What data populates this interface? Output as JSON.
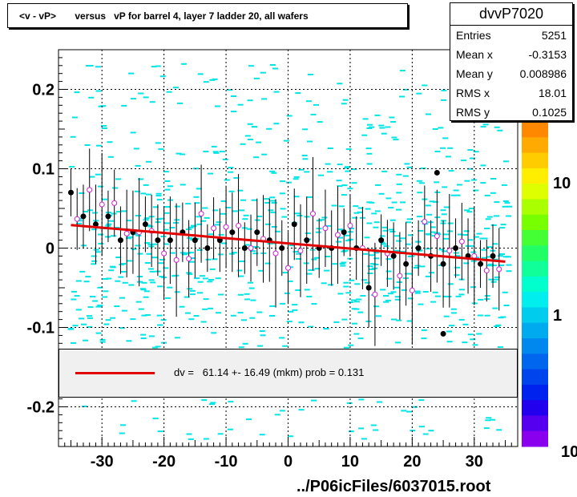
{
  "title": "<v - vP>       versus   vP for barrel 4, layer 7 ladder 20, all wafers",
  "stats": {
    "name": "dvvP7020",
    "rows": [
      {
        "label": "Entries",
        "value": "5251"
      },
      {
        "label": "Mean x",
        "value": "-0.3153"
      },
      {
        "label": "Mean y",
        "value": "0.008986"
      },
      {
        "label": "RMS x",
        "value": "18.01"
      },
      {
        "label": "RMS y",
        "value": "0.1025"
      }
    ]
  },
  "fit_label": "dv =   61.14 +- 16.49 (mkm) prob = 0.131",
  "footer": "../P06icFiles/6037015.root",
  "colors": {
    "fit": "#e00000",
    "points": "#000000",
    "open_markers": "#cc22cc",
    "hist_cells": "#00e5e5",
    "grid": "#000000"
  },
  "chart_data": {
    "type": "scatter",
    "title": "<v - vP>       versus   vP for barrel 4, layer 7 ladder 20, all wafers",
    "xlabel": "",
    "ylabel": "",
    "xlim": [
      -37,
      37
    ],
    "ylim": [
      -0.25,
      0.25
    ],
    "xticks": [
      -30,
      -20,
      -10,
      0,
      10,
      20,
      30
    ],
    "yticks": [
      -0.2,
      -0.1,
      0,
      0.1,
      0.2
    ],
    "xtick_labels": [
      "-30",
      "-20",
      "-10",
      "0",
      "10",
      "20",
      "30"
    ],
    "ytick_labels": [
      "-0.2",
      "-0.1",
      "0",
      "0.1",
      "0.2"
    ],
    "grid": true,
    "fit": {
      "x": [
        -35,
        35
      ],
      "y": [
        0.029,
        -0.017
      ]
    },
    "color_scale": {
      "labels": [
        "10",
        "1",
        "10"
      ],
      "note": "log scale"
    },
    "profile_means": {
      "x": [
        -35,
        -33,
        -31,
        -29,
        -27,
        -25,
        -23,
        -21,
        -19,
        -17,
        -15,
        -13,
        -11,
        -9,
        -7,
        -5,
        -3,
        -1,
        1,
        3,
        5,
        7,
        9,
        11,
        13,
        15,
        17,
        19,
        21,
        23,
        25,
        27,
        29,
        31,
        33
      ],
      "y": [
        0.07,
        0.04,
        0.03,
        0.04,
        0.01,
        0.02,
        0.03,
        0.01,
        0.01,
        0.02,
        0.01,
        0.0,
        0.01,
        0.02,
        0.0,
        0.02,
        0.01,
        0.0,
        0.03,
        0.01,
        0.0,
        0.0,
        0.02,
        0.0,
        -0.05,
        0.01,
        -0.01,
        -0.02,
        0.0,
        -0.01,
        -0.02,
        0.0,
        -0.01,
        -0.02,
        -0.01
      ]
    },
    "outliers": {
      "x": [
        24,
        25
      ],
      "y": [
        0.095,
        -0.108
      ]
    }
  }
}
